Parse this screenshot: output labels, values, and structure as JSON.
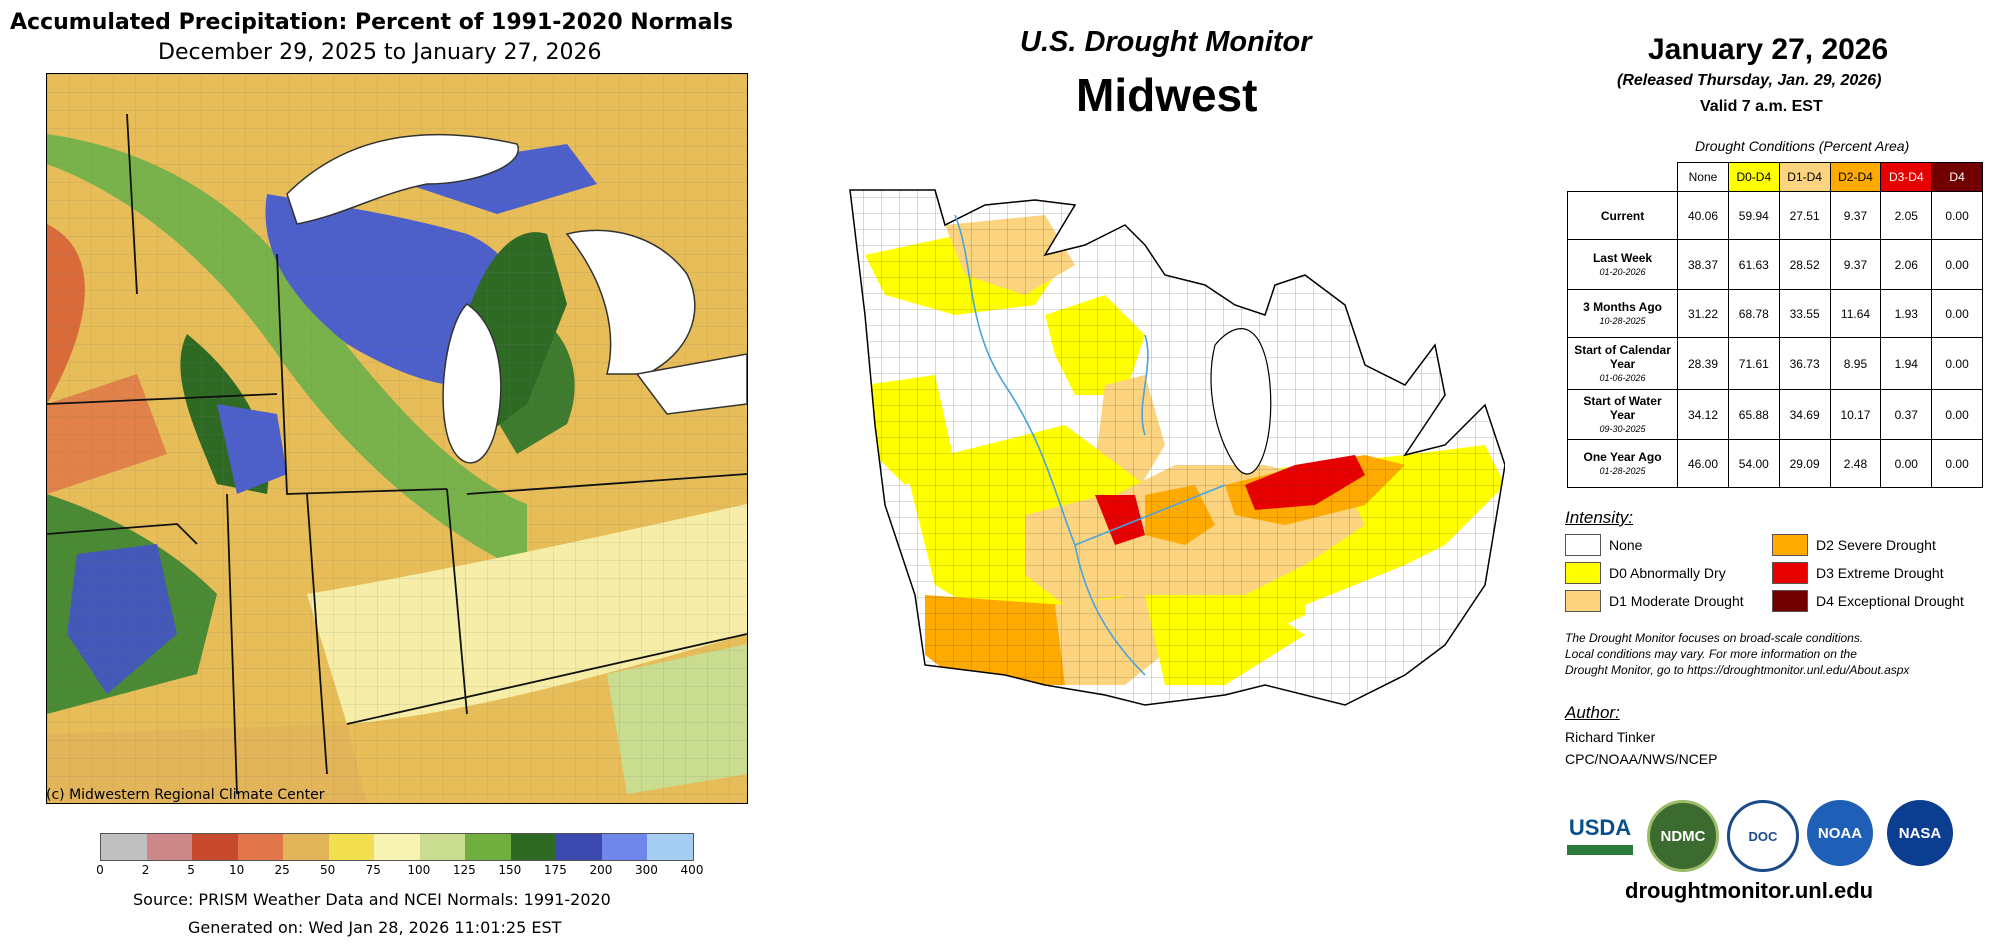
{
  "precip": {
    "title": "Accumulated Precipitation: Percent of 1991-2020 Normals",
    "subtitle": "December 29, 2025 to January 27, 2026",
    "copyright": "(c) Midwestern Regional Climate Center",
    "source": "Source: PRISM Weather Data and NCEI Normals: 1991-2020",
    "generated": "Generated on: Wed Jan 28, 2026 11:01:25 EST",
    "colorbar": {
      "ticks": [
        "0",
        "2",
        "5",
        "10",
        "25",
        "50",
        "75",
        "100",
        "125",
        "150",
        "175",
        "200",
        "300",
        "400"
      ],
      "colors": [
        "#c0c0c0",
        "#cc8888",
        "#c84a2e",
        "#e0764a",
        "#e3b55a",
        "#f1df4f",
        "#f7f3b2",
        "#c9dc8f",
        "#6fae3f",
        "#2f6a25",
        "#3c4ab0",
        "#6f86ea",
        "#a6cdf2"
      ]
    }
  },
  "drought": {
    "title": "U.S. Drought Monitor",
    "region": "Midwest",
    "date": "January 27, 2026",
    "released": "(Released Thursday, Jan. 29, 2026)",
    "valid": "Valid 7 a.m. EST",
    "table_caption": "Drought Conditions (Percent Area)",
    "columns": [
      {
        "label": "None",
        "bg": "#ffffff",
        "fg": "#000000"
      },
      {
        "label": "D0-D4",
        "bg": "#ffff00",
        "fg": "#000000"
      },
      {
        "label": "D1-D4",
        "bg": "#fcd37f",
        "fg": "#000000"
      },
      {
        "label": "D2-D4",
        "bg": "#ffaa00",
        "fg": "#000000"
      },
      {
        "label": "D3-D4",
        "bg": "#e60000",
        "fg": "#ffffff"
      },
      {
        "label": "D4",
        "bg": "#730000",
        "fg": "#ffffff"
      }
    ],
    "rows": [
      {
        "label": "Current",
        "sub": "",
        "values": [
          "40.06",
          "59.94",
          "27.51",
          "9.37",
          "2.05",
          "0.00"
        ]
      },
      {
        "label": "Last Week",
        "sub": "01-20-2026",
        "values": [
          "38.37",
          "61.63",
          "28.52",
          "9.37",
          "2.06",
          "0.00"
        ]
      },
      {
        "label": "3 Months Ago",
        "sub": "10-28-2025",
        "values": [
          "31.22",
          "68.78",
          "33.55",
          "11.64",
          "1.93",
          "0.00"
        ]
      },
      {
        "label": "Start of Calendar Year",
        "sub": "01-06-2026",
        "values": [
          "28.39",
          "71.61",
          "36.73",
          "8.95",
          "1.94",
          "0.00"
        ]
      },
      {
        "label": "Start of Water Year",
        "sub": "09-30-2025",
        "values": [
          "34.12",
          "65.88",
          "34.69",
          "10.17",
          "0.37",
          "0.00"
        ]
      },
      {
        "label": "One Year Ago",
        "sub": "01-28-2025",
        "values": [
          "46.00",
          "54.00",
          "29.09",
          "2.48",
          "0.00",
          "0.00"
        ]
      }
    ],
    "intensity_heading": "Intensity:",
    "legend": [
      {
        "label": "None",
        "color": "#ffffff"
      },
      {
        "label": "D0 Abnormally Dry",
        "color": "#ffff00"
      },
      {
        "label": "D1 Moderate Drought",
        "color": "#fcd37f"
      },
      {
        "label": "D2 Severe Drought",
        "color": "#ffaa00"
      },
      {
        "label": "D3 Extreme Drought",
        "color": "#e60000"
      },
      {
        "label": "D4 Exceptional Drought",
        "color": "#730000"
      }
    ],
    "note_lines": [
      "The Drought Monitor focuses on broad-scale conditions.",
      "Local conditions may vary. For more information on the",
      "Drought Monitor, go to https://droughtmonitor.unl.edu/About.aspx"
    ],
    "author_heading": "Author:",
    "author_name": "Richard Tinker",
    "author_org": "CPC/NOAA/NWS/NCEP",
    "logos": [
      "USDA",
      "NDMC",
      "DOC",
      "NOAA",
      "NASA"
    ],
    "url": "droughtmonitor.unl.edu"
  }
}
